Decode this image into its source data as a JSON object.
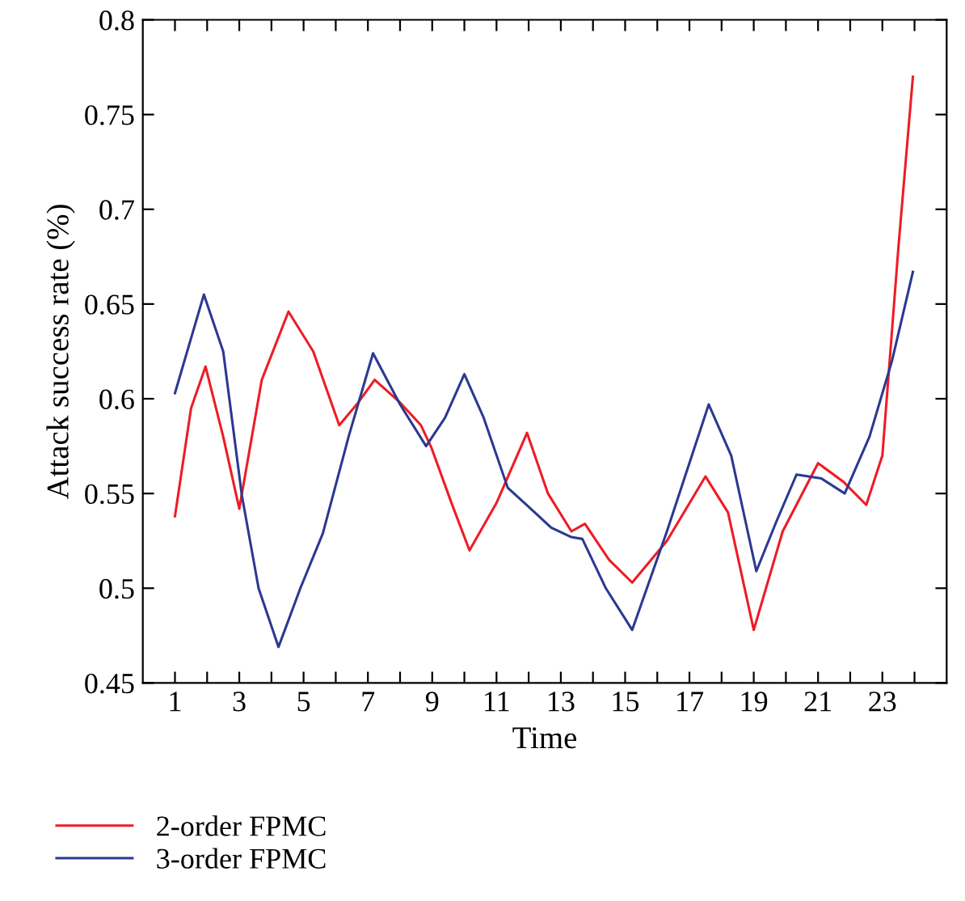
{
  "chart_data": {
    "type": "line",
    "xlabel": "Time",
    "ylabel": "Attack success rate (%)",
    "xlim": [
      0,
      25
    ],
    "ylim": [
      0.45,
      0.8
    ],
    "xticks": [
      1,
      {
        "value": 2,
        "label": null
      },
      3,
      {
        "value": 4,
        "label": null
      },
      5,
      {
        "value": 6,
        "label": null
      },
      7,
      {
        "value": 8,
        "label": null
      },
      9,
      {
        "value": 10,
        "label": null
      },
      11,
      {
        "value": 12,
        "label": null
      },
      13,
      {
        "value": 14,
        "label": null
      },
      15,
      {
        "value": 16,
        "label": null
      },
      17,
      {
        "value": 18,
        "label": null
      },
      19,
      {
        "value": 20,
        "label": null
      },
      21,
      {
        "value": 22,
        "label": null
      },
      23,
      {
        "value": 24,
        "label": null
      }
    ],
    "yticks": [
      0.45,
      0.5,
      0.55,
      0.6,
      0.65,
      0.7,
      0.75,
      0.8
    ],
    "grid": false,
    "legend": "bottom left",
    "marker": "none",
    "line_style": "solid",
    "series": [
      {
        "name": "2-order FPMC",
        "color": "#ee1c25",
        "x": [
          1,
          1.5,
          1.95,
          2.5,
          3.0,
          3.7,
          4.53,
          5.3,
          6.11,
          6.7,
          7.21,
          8.0,
          8.65,
          8.98,
          9.6,
          10.16,
          11.0,
          11.95,
          12.6,
          13.33,
          13.75,
          14.5,
          15.22,
          16.3,
          17.5,
          18.2,
          19.0,
          19.9,
          21.0,
          21.8,
          22.5,
          23.0,
          23.5,
          23.95
        ],
        "values": [
          0.538,
          0.595,
          0.617,
          0.58,
          0.542,
          0.61,
          0.646,
          0.625,
          0.586,
          0.598,
          0.61,
          0.598,
          0.586,
          0.574,
          0.545,
          0.52,
          0.545,
          0.582,
          0.55,
          0.53,
          0.534,
          0.515,
          0.503,
          0.525,
          0.559,
          0.54,
          0.478,
          0.53,
          0.566,
          0.556,
          0.544,
          0.57,
          0.68,
          0.77
        ]
      },
      {
        "name": "3-order FPMC",
        "color": "#2b3990",
        "x": [
          1,
          1.9,
          2.5,
          3.08,
          3.6,
          4.22,
          4.9,
          5.6,
          6.4,
          7.16,
          8.0,
          8.81,
          9.4,
          10.0,
          10.6,
          11.35,
          12.0,
          12.7,
          13.33,
          13.67,
          14.4,
          15.22,
          16.3,
          17.6,
          18.3,
          19.08,
          19.7,
          20.33,
          21.1,
          21.83,
          22.6,
          23.3,
          23.95
        ],
        "values": [
          0.603,
          0.655,
          0.625,
          0.549,
          0.5,
          0.469,
          0.5,
          0.529,
          0.58,
          0.624,
          0.597,
          0.575,
          0.59,
          0.613,
          0.59,
          0.553,
          0.543,
          0.532,
          0.527,
          0.526,
          0.5,
          0.478,
          0.53,
          0.597,
          0.57,
          0.509,
          0.535,
          0.56,
          0.558,
          0.55,
          0.58,
          0.62,
          0.667
        ]
      }
    ]
  }
}
